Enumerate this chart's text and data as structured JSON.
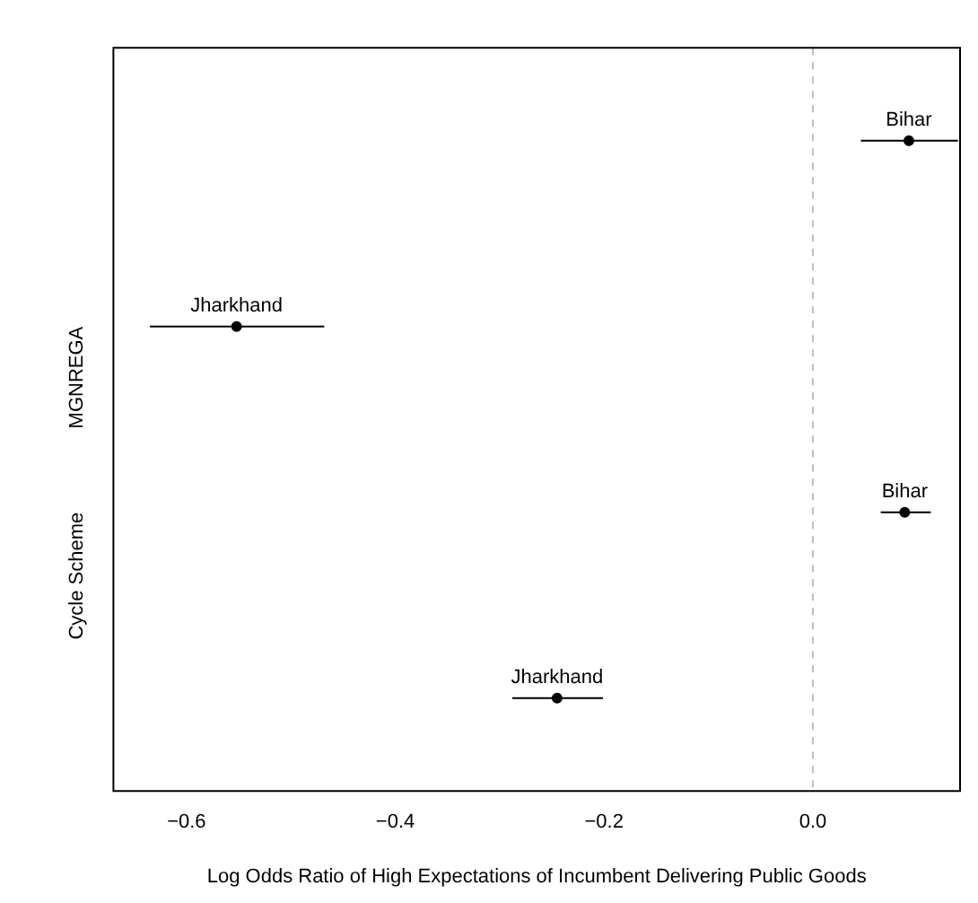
{
  "chart_data": {
    "type": "scatter",
    "orientation": "horizontal",
    "xlabel": "Log Odds Ratio of High Expectations of Incumbent Delivering Public Goods",
    "categories": [
      null,
      "MGNREGA",
      "Cycle Scheme",
      null
    ],
    "values": [
      0.092,
      -0.552,
      0.088,
      -0.245
    ],
    "errors": [
      [
        0.046,
        0.139
      ],
      [
        -0.635,
        -0.468
      ],
      [
        0.065,
        0.113
      ],
      [
        -0.288,
        -0.201
      ]
    ],
    "value_labels": [
      "Bihar",
      "Jharkhand",
      "Bihar",
      "Jharkhand"
    ],
    "color": "#000000",
    "marker": "circle",
    "grid": false,
    "legend": false,
    "xlim": [
      -0.67,
      0.141
    ],
    "xticks": [
      {
        "value": -0.6,
        "label": "−0.6"
      },
      {
        "value": -0.4,
        "label": "−0.4"
      },
      {
        "value": -0.2,
        "label": "−0.2"
      },
      {
        "value": 0,
        "label": "0.0"
      }
    ],
    "ref_lines": [
      {
        "axis": "x",
        "value": 0,
        "color": "#bebebe",
        "line_style": "dashed"
      }
    ]
  }
}
